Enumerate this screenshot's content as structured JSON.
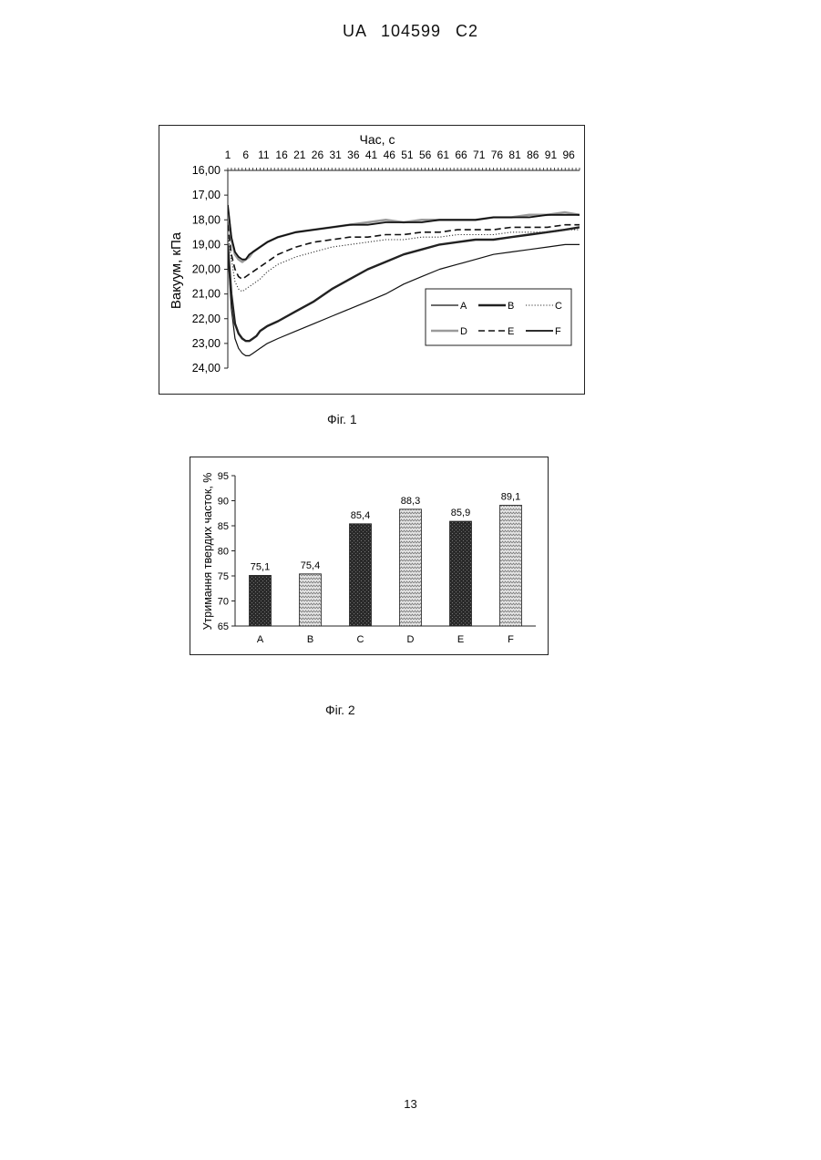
{
  "header": {
    "patent_number": "UA   104599   C2"
  },
  "page_number": "13",
  "figures": [
    {
      "caption": "Фіг. 1"
    },
    {
      "caption": "Фіг. 2"
    }
  ],
  "chart_data": [
    {
      "type": "line",
      "xlabel": "Час, с",
      "ylabel": "Вакуум, кПа",
      "x_ticks": [
        "1",
        "6",
        "11",
        "16",
        "21",
        "26",
        "31",
        "36",
        "41",
        "46",
        "51",
        "56",
        "61",
        "66",
        "71",
        "76",
        "81",
        "86",
        "91",
        "96"
      ],
      "y_ticks": [
        "16,00",
        "17,00",
        "18,00",
        "19,00",
        "20,00",
        "21,00",
        "22,00",
        "23,00",
        "24,00"
      ],
      "xlim": [
        1,
        99
      ],
      "ylim": [
        16,
        24
      ],
      "y_inverted": true,
      "legend_position": "bottom-right",
      "series": [
        {
          "name": "A",
          "style": "solid-thin",
          "x": [
            1,
            2,
            3,
            4,
            5,
            6,
            7,
            8,
            9,
            10,
            12,
            15,
            20,
            25,
            30,
            35,
            40,
            45,
            50,
            55,
            60,
            65,
            70,
            75,
            80,
            85,
            90,
            95,
            99
          ],
          "y": [
            19.3,
            21.6,
            22.8,
            23.2,
            23.4,
            23.5,
            23.5,
            23.4,
            23.3,
            23.2,
            23.0,
            22.8,
            22.5,
            22.2,
            21.9,
            21.6,
            21.3,
            21.0,
            20.6,
            20.3,
            20.0,
            19.8,
            19.6,
            19.4,
            19.3,
            19.2,
            19.1,
            19.0,
            19.0
          ]
        },
        {
          "name": "B",
          "style": "thick",
          "x": [
            1,
            2,
            3,
            4,
            5,
            6,
            7,
            8,
            9,
            10,
            12,
            15,
            20,
            25,
            30,
            35,
            40,
            45,
            50,
            55,
            60,
            65,
            70,
            75,
            80,
            85,
            90,
            95,
            99
          ],
          "y": [
            19.0,
            21.0,
            22.2,
            22.6,
            22.8,
            22.9,
            22.9,
            22.8,
            22.7,
            22.5,
            22.3,
            22.1,
            21.7,
            21.3,
            20.8,
            20.4,
            20.0,
            19.7,
            19.4,
            19.2,
            19.0,
            18.9,
            18.8,
            18.8,
            18.7,
            18.6,
            18.5,
            18.4,
            18.3
          ]
        },
        {
          "name": "C",
          "style": "dotted",
          "x": [
            1,
            2,
            3,
            4,
            5,
            6,
            7,
            8,
            10,
            12,
            15,
            20,
            25,
            30,
            35,
            40,
            45,
            50,
            55,
            60,
            65,
            70,
            75,
            80,
            85,
            90,
            95,
            99
          ],
          "y": [
            18.6,
            19.6,
            20.5,
            20.8,
            20.9,
            20.8,
            20.7,
            20.6,
            20.4,
            20.1,
            19.8,
            19.5,
            19.3,
            19.1,
            19.0,
            18.9,
            18.8,
            18.8,
            18.7,
            18.7,
            18.6,
            18.6,
            18.6,
            18.5,
            18.5,
            18.5,
            18.4,
            18.4
          ]
        },
        {
          "name": "D",
          "style": "grey-noisy",
          "x": [
            1,
            2,
            3,
            4,
            5,
            6,
            7,
            8,
            10,
            12,
            15,
            20,
            25,
            30,
            35,
            40,
            45,
            50,
            55,
            60,
            65,
            70,
            75,
            80,
            85,
            90,
            95,
            99
          ],
          "y": [
            17.6,
            18.8,
            19.4,
            19.6,
            19.7,
            19.6,
            19.5,
            19.3,
            19.1,
            18.9,
            18.7,
            18.5,
            18.4,
            18.3,
            18.2,
            18.1,
            18.0,
            18.1,
            18.0,
            18.0,
            18.0,
            18.0,
            17.9,
            17.9,
            17.8,
            17.8,
            17.7,
            17.8
          ]
        },
        {
          "name": "E",
          "style": "dashed",
          "x": [
            1,
            2,
            3,
            4,
            5,
            6,
            7,
            8,
            10,
            12,
            15,
            20,
            25,
            30,
            35,
            40,
            45,
            50,
            55,
            60,
            65,
            70,
            75,
            80,
            85,
            90,
            95,
            99
          ],
          "y": [
            18.2,
            19.4,
            20.0,
            20.3,
            20.4,
            20.3,
            20.2,
            20.1,
            19.9,
            19.7,
            19.4,
            19.1,
            18.9,
            18.8,
            18.7,
            18.7,
            18.6,
            18.6,
            18.5,
            18.5,
            18.4,
            18.4,
            18.4,
            18.3,
            18.3,
            18.3,
            18.2,
            18.2
          ]
        },
        {
          "name": "F",
          "style": "solid-medium",
          "x": [
            1,
            2,
            3,
            4,
            5,
            6,
            7,
            8,
            10,
            12,
            15,
            20,
            25,
            30,
            35,
            40,
            45,
            50,
            55,
            60,
            65,
            70,
            75,
            80,
            85,
            90,
            95,
            99
          ],
          "y": [
            17.4,
            18.7,
            19.3,
            19.5,
            19.6,
            19.6,
            19.4,
            19.3,
            19.1,
            18.9,
            18.7,
            18.5,
            18.4,
            18.3,
            18.2,
            18.2,
            18.1,
            18.1,
            18.1,
            18.0,
            18.0,
            18.0,
            17.9,
            17.9,
            17.9,
            17.8,
            17.8,
            17.8
          ]
        }
      ]
    },
    {
      "type": "bar",
      "ylabel": "Утримання твердих часток, %",
      "categories": [
        "A",
        "B",
        "C",
        "D",
        "E",
        "F"
      ],
      "values": [
        75.1,
        75.4,
        85.4,
        88.3,
        85.9,
        89.1
      ],
      "value_labels": [
        "75,1",
        "75,4",
        "85,4",
        "88,3",
        "85,9",
        "89,1"
      ],
      "y_ticks": [
        "65",
        "70",
        "75",
        "80",
        "85",
        "90",
        "95"
      ],
      "ylim": [
        65,
        95
      ],
      "fill_patterns": [
        "dark",
        "light",
        "dark",
        "light",
        "dark",
        "light"
      ]
    }
  ]
}
